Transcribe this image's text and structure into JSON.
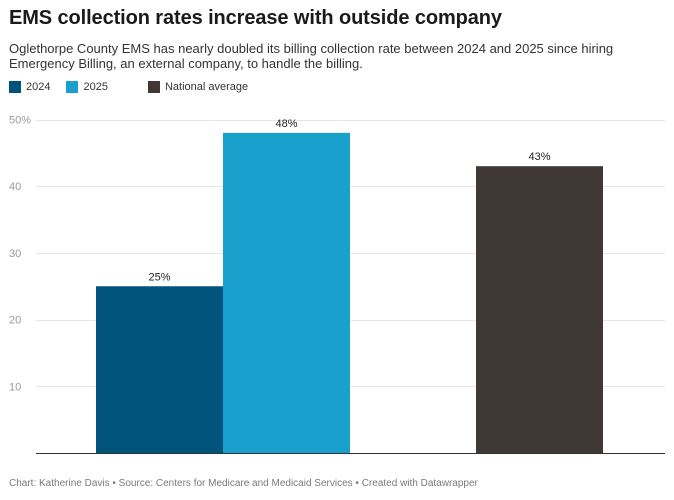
{
  "title": "EMS collection rates increase with outside company",
  "subtitle": "Oglethorpe County EMS has nearly doubled its billing collection rate between 2024 and 2025 since hiring Emergency Billing, an external company, to handle the billing.",
  "footer": "Chart: Katherine Davis • Source: Centers for Medicare and Medicaid Services • Created with Datawrapper",
  "colors": {
    "2024": "#00537a",
    "2025": "#19a0cc",
    "national": "#3f3835",
    "grid": "#e6e6e6",
    "axis": "#333333"
  },
  "chart_data": {
    "type": "bar",
    "title": "EMS collection rates increase with outside company",
    "ylim": [
      0,
      50
    ],
    "yticks": [
      10,
      20,
      30,
      40,
      50
    ],
    "ytick_labels": [
      "10",
      "20",
      "30",
      "40",
      "50%"
    ],
    "grid": true,
    "legend_position": "top-left",
    "series": [
      {
        "name": "2024",
        "values": [
          25
        ],
        "labels": [
          "25%"
        ],
        "color": "#00537a"
      },
      {
        "name": "2025",
        "values": [
          48
        ],
        "labels": [
          "48%"
        ],
        "color": "#19a0cc"
      },
      {
        "name": "National average",
        "values": [
          43
        ],
        "labels": [
          "43%"
        ],
        "color": "#3f3835"
      }
    ]
  }
}
